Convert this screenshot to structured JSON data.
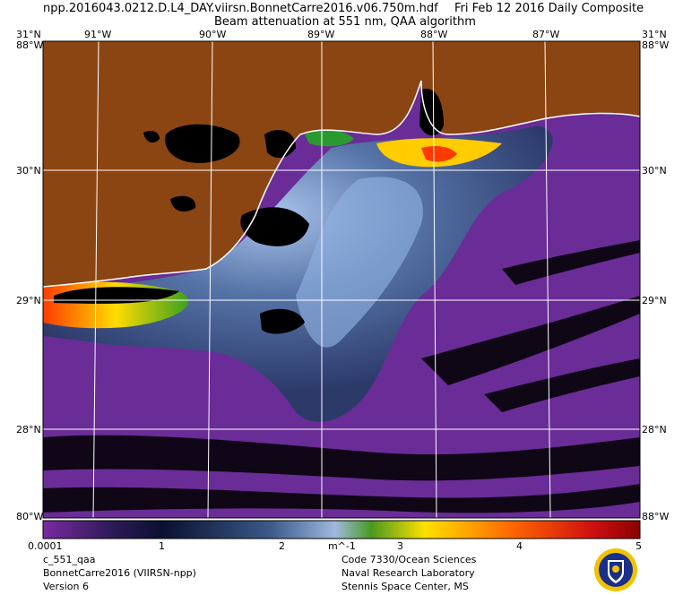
{
  "header": {
    "filename": "npp.2016043.0212.D.L4_DAY.viirsn.BonnetCarre2016.v06.750m.hdf",
    "date": "Fri Feb 12 2016 Daily Composite",
    "subtitle": "Beam attenuation at 551 nm, QAA algorithm"
  },
  "map": {
    "top_lon_labels": [
      "91°W",
      "90°W",
      "89°W",
      "88°W",
      "87°W"
    ],
    "lat_labels": [
      "30°N",
      "29°N",
      "28°N"
    ],
    "corner_top_left": "31°N",
    "corner_top_left_lon": "88°W",
    "corner_top_right": "31°N",
    "corner_top_right_lon": "88°W",
    "corner_bottom_left": "80°W",
    "corner_bottom_right": "88°W",
    "colors": {
      "land": "#8b4513",
      "shoreline": "#ffffff",
      "grid": "#ffffff",
      "nodata": "#000000",
      "offshore_water": "#6a2c97",
      "turbid_water": "#2b3a6b",
      "very_turbid": "#ffd400",
      "peak": "#ff2a00"
    }
  },
  "colorbar": {
    "stops": [
      "#7a2aa0",
      "#2a1a55",
      "#0a1030",
      "#3a5a8a",
      "#9fb8e0",
      "#4a9a20",
      "#ffe000",
      "#ff6a00",
      "#d01010",
      "#8a0000"
    ],
    "tick_labels": [
      "0.0001",
      "1",
      "2",
      "3",
      "4",
      "5"
    ],
    "tick_values": [
      0.0001,
      1,
      2,
      3,
      4,
      5
    ],
    "unit": "m^-1"
  },
  "footer": {
    "left": [
      "c_551_qaa",
      "BonnetCarre2016 (VIIRSN-npp)",
      "Version 6"
    ],
    "right": [
      "Code 7330/Ocean Sciences",
      "Naval Research Laboratory",
      "Stennis Space Center, MS"
    ],
    "logo_icon": "nrl-seal-icon"
  }
}
